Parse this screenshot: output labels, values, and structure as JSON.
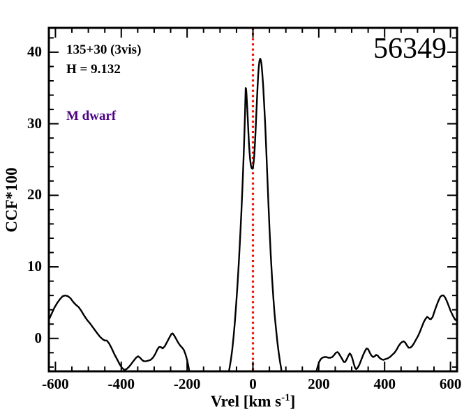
{
  "figure": {
    "star_id": "56349",
    "field_label": "135+30 (3vis)",
    "h_mag_label": "H = 9.132",
    "template_label": "M dwarf",
    "colors": {
      "curve": "#000000",
      "frame": "#000000",
      "vline": "#ee1100",
      "template_label": "#4b0082",
      "background": "#ffffff"
    }
  },
  "chart_data": {
    "type": "line",
    "title": "56349",
    "annotations": [
      "135+30 (3vis)",
      "H = 9.132",
      "M dwarf"
    ],
    "xlabel": "Vrel [km s-1]",
    "xlabel_parts": {
      "main": "Vrel [km s",
      "sup": "-1",
      "close": "]"
    },
    "ylabel": "CCF*100",
    "xlim": [
      -620,
      620
    ],
    "ylim": [
      -4.6,
      43.4
    ],
    "xticks": [
      -600,
      -400,
      -200,
      0,
      200,
      400,
      600
    ],
    "xtick_labels": [
      "-600",
      "-400",
      "-200",
      "0",
      "200",
      "400",
      "600"
    ],
    "x_minor_step": 50,
    "yticks": [
      0,
      10,
      20,
      30,
      40
    ],
    "ytick_labels": [
      "0",
      "10",
      "20",
      "30",
      "40"
    ],
    "y_minor_step": 2,
    "grid": false,
    "legend": null,
    "vline": {
      "x": 0,
      "style": "dotted",
      "color": "#ee1100"
    },
    "series": [
      {
        "name": "CCF",
        "color": "#000000",
        "segments": [
          [
            [
              -620,
              2.6
            ],
            [
              -612,
              3.4
            ],
            [
              -603,
              4.3
            ],
            [
              -594,
              5.0
            ],
            [
              -586,
              5.5
            ],
            [
              -578,
              5.9
            ],
            [
              -570,
              6.0
            ],
            [
              -562,
              5.9
            ],
            [
              -554,
              5.6
            ],
            [
              -546,
              5.1
            ],
            [
              -538,
              4.7
            ],
            [
              -530,
              4.4
            ],
            [
              -522,
              3.9
            ],
            [
              -513,
              3.2
            ],
            [
              -504,
              2.6
            ],
            [
              -495,
              2.1
            ],
            [
              -487,
              1.6
            ],
            [
              -479,
              1.1
            ],
            [
              -471,
              0.6
            ],
            [
              -464,
              0.2
            ],
            [
              -457,
              -0.1
            ],
            [
              -450,
              -0.3
            ],
            [
              -444,
              -0.3
            ],
            [
              -437,
              -0.7
            ],
            [
              -429,
              -1.4
            ],
            [
              -421,
              -2.2
            ],
            [
              -413,
              -2.9
            ],
            [
              -405,
              -3.6
            ],
            [
              -398,
              -4.1
            ],
            [
              -391,
              -4.4
            ],
            [
              -384,
              -4.3
            ],
            [
              -377,
              -4.0
            ],
            [
              -370,
              -3.6
            ],
            [
              -362,
              -3.1
            ],
            [
              -355,
              -2.7
            ],
            [
              -349,
              -2.5
            ],
            [
              -343,
              -2.7
            ],
            [
              -337,
              -3.0
            ],
            [
              -331,
              -3.2
            ],
            [
              -325,
              -3.2
            ],
            [
              -318,
              -3.1
            ],
            [
              -311,
              -3.0
            ],
            [
              -304,
              -2.7
            ],
            [
              -297,
              -2.2
            ],
            [
              -291,
              -1.6
            ],
            [
              -285,
              -1.2
            ],
            [
              -280,
              -1.2
            ],
            [
              -274,
              -1.4
            ],
            [
              -268,
              -1.1
            ],
            [
              -261,
              -0.5
            ],
            [
              -254,
              0.1
            ],
            [
              -248,
              0.6
            ],
            [
              -244,
              0.7
            ],
            [
              -239,
              0.4
            ],
            [
              -233,
              -0.1
            ],
            [
              -227,
              -0.6
            ],
            [
              -221,
              -1.0
            ],
            [
              -215,
              -1.3
            ],
            [
              -210,
              -1.6
            ],
            [
              -205,
              -2.2
            ],
            [
              -200,
              -3.0
            ],
            [
              -196,
              -3.9
            ],
            [
              -192,
              -4.9
            ]
          ],
          [
            [
              -74,
              -4.9
            ],
            [
              -71,
              -4.1
            ],
            [
              -67,
              -3.0
            ],
            [
              -63,
              -1.6
            ],
            [
              -59,
              0.2
            ],
            [
              -55,
              2.3
            ],
            [
              -51,
              4.7
            ],
            [
              -47,
              7.4
            ],
            [
              -43,
              10.5
            ],
            [
              -39,
              14.0
            ],
            [
              -35,
              17.8
            ],
            [
              -32,
              21.0
            ],
            [
              -29,
              24.5
            ],
            [
              -27,
              27.2
            ],
            [
              -25,
              30.0
            ],
            [
              -24,
              31.6
            ],
            [
              -23,
              33.2
            ],
            [
              -22,
              35.0
            ],
            [
              -21,
              34.9
            ],
            [
              -20,
              34.4
            ],
            [
              -18,
              32.8
            ],
            [
              -16,
              30.9
            ],
            [
              -14,
              29.0
            ],
            [
              -12,
              27.2
            ],
            [
              -10,
              25.8
            ],
            [
              -8,
              24.8
            ],
            [
              -6,
              24.1
            ],
            [
              -4,
              23.8
            ],
            [
              -2,
              23.7
            ],
            [
              0,
              23.9
            ],
            [
              2,
              24.5
            ],
            [
              4,
              25.6
            ],
            [
              6,
              27.1
            ],
            [
              8,
              29.0
            ],
            [
              10,
              31.1
            ],
            [
              12,
              33.2
            ],
            [
              14,
              35.1
            ],
            [
              16,
              36.8
            ],
            [
              18,
              38.1
            ],
            [
              20,
              38.8
            ],
            [
              22,
              39.1
            ],
            [
              24,
              38.9
            ],
            [
              26,
              38.3
            ],
            [
              28,
              37.3
            ],
            [
              31,
              35.4
            ],
            [
              34,
              32.9
            ],
            [
              37,
              30.0
            ],
            [
              40,
              26.8
            ],
            [
              43,
              23.4
            ],
            [
              46,
              20.0
            ],
            [
              50,
              15.6
            ],
            [
              54,
              11.7
            ],
            [
              58,
              8.4
            ],
            [
              62,
              5.6
            ],
            [
              66,
              3.3
            ],
            [
              70,
              1.4
            ],
            [
              74,
              -0.4
            ],
            [
              78,
              -1.9
            ],
            [
              82,
              -3.2
            ],
            [
              85,
              -4.0
            ],
            [
              88,
              -4.9
            ]
          ],
          [
            [
              191,
              -4.9
            ],
            [
              194,
              -4.4
            ],
            [
              197,
              -3.9
            ],
            [
              201,
              -3.3
            ],
            [
              206,
              -2.9
            ],
            [
              211,
              -2.7
            ],
            [
              217,
              -2.6
            ],
            [
              223,
              -2.6
            ],
            [
              229,
              -2.7
            ],
            [
              235,
              -2.7
            ],
            [
              241,
              -2.6
            ],
            [
              247,
              -2.3
            ],
            [
              252,
              -2.0
            ],
            [
              257,
              -1.9
            ],
            [
              261,
              -2.1
            ],
            [
              266,
              -2.5
            ],
            [
              271,
              -2.9
            ],
            [
              276,
              -3.3
            ],
            [
              280,
              -3.3
            ],
            [
              285,
              -2.9
            ],
            [
              290,
              -2.4
            ],
            [
              294,
              -2.1
            ],
            [
              298,
              -2.3
            ],
            [
              302,
              -2.8
            ],
            [
              306,
              -3.5
            ],
            [
              310,
              -4.1
            ],
            [
              314,
              -4.3
            ],
            [
              318,
              -4.1
            ],
            [
              323,
              -3.7
            ],
            [
              329,
              -3.0
            ],
            [
              335,
              -2.3
            ],
            [
              340,
              -1.8
            ],
            [
              345,
              -1.4
            ],
            [
              350,
              -1.5
            ],
            [
              355,
              -2.0
            ],
            [
              360,
              -2.4
            ],
            [
              365,
              -2.6
            ],
            [
              370,
              -2.5
            ],
            [
              374,
              -2.3
            ],
            [
              379,
              -2.4
            ],
            [
              384,
              -2.7
            ],
            [
              390,
              -2.9
            ],
            [
              396,
              -3.0
            ],
            [
              402,
              -2.9
            ],
            [
              409,
              -2.8
            ],
            [
              416,
              -2.6
            ],
            [
              423,
              -2.3
            ],
            [
              430,
              -2.0
            ],
            [
              436,
              -1.6
            ],
            [
              442,
              -1.1
            ],
            [
              448,
              -0.7
            ],
            [
              453,
              -0.5
            ],
            [
              458,
              -0.4
            ],
            [
              463,
              -0.6
            ],
            [
              468,
              -1.0
            ],
            [
              473,
              -1.3
            ],
            [
              478,
              -1.3
            ],
            [
              483,
              -1.1
            ],
            [
              489,
              -0.7
            ],
            [
              495,
              -0.2
            ],
            [
              501,
              0.3
            ],
            [
              507,
              0.9
            ],
            [
              513,
              1.6
            ],
            [
              519,
              2.3
            ],
            [
              524,
              2.7
            ],
            [
              529,
              3.0
            ],
            [
              533,
              2.9
            ],
            [
              537,
              2.7
            ],
            [
              541,
              2.7
            ],
            [
              546,
              3.0
            ],
            [
              551,
              3.7
            ],
            [
              557,
              4.5
            ],
            [
              563,
              5.2
            ],
            [
              569,
              5.8
            ],
            [
              574,
              6.0
            ],
            [
              579,
              6.0
            ],
            [
              584,
              5.7
            ],
            [
              589,
              5.2
            ],
            [
              595,
              4.5
            ],
            [
              601,
              3.8
            ],
            [
              607,
              3.2
            ],
            [
              613,
              2.7
            ],
            [
              620,
              2.4
            ]
          ]
        ]
      }
    ]
  }
}
